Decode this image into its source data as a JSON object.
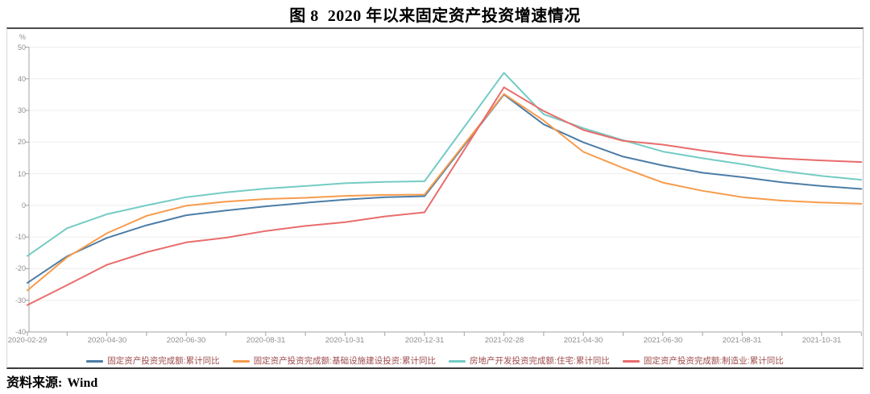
{
  "title": "图 8  2020 年以来固定资产投资增速情况",
  "source": {
    "label": "资料来源:",
    "value": "Wind"
  },
  "chart_data": {
    "type": "line",
    "title": "图 8  2020 年以来固定资产投资增速情况",
    "y_unit": "%",
    "ylim": [
      -40,
      50
    ],
    "ytick_step": 10,
    "y_tick_labels": [
      "50",
      "40",
      "30",
      "20",
      "10",
      "0",
      "-10",
      "-20",
      "-30",
      "-40"
    ],
    "grid": true,
    "legend_position": "bottom",
    "x_tick_labels": [
      "2020-02-29",
      "2020-04-30",
      "2020-06-30",
      "2020-08-31",
      "2020-10-31",
      "2020-12-31",
      "2021-02-28",
      "2021-04-30",
      "2021-06-30",
      "2021-08-31",
      "2021-10-31"
    ],
    "x_months": [
      "2020-02",
      "2020-03",
      "2020-04",
      "2020-05",
      "2020-06",
      "2020-07",
      "2020-08",
      "2020-09",
      "2020-10",
      "2020-11",
      "2020-12",
      "2021-02",
      "2021-03",
      "2021-04",
      "2021-05",
      "2021-06",
      "2021-07",
      "2021-08",
      "2021-09",
      "2021-10",
      "2021-11"
    ],
    "x_month_offsets": [
      0,
      1,
      2,
      3,
      4,
      5,
      6,
      7,
      8,
      9,
      10,
      12,
      13,
      14,
      15,
      16,
      17,
      18,
      19,
      20,
      21
    ],
    "series": [
      {
        "name": "固定资产投资完成额:累计同比",
        "color": "#4c7da6",
        "values": [
          -24.5,
          -16.1,
          -10.3,
          -6.3,
          -3.1,
          -1.6,
          -0.3,
          0.8,
          1.8,
          2.6,
          2.9,
          35.0,
          25.6,
          19.9,
          15.4,
          12.6,
          10.3,
          8.9,
          7.3,
          6.1,
          5.2
        ]
      },
      {
        "name": "固定资产投资完成额:基础设施建设投资:累计同比",
        "color": "#f79c4c",
        "values": [
          -26.9,
          -16.4,
          -8.8,
          -3.3,
          -0.1,
          1.2,
          2.0,
          2.4,
          3.0,
          3.3,
          3.4,
          35.2,
          26.8,
          16.9,
          11.8,
          7.2,
          4.6,
          2.6,
          1.5,
          0.9,
          0.5
        ]
      },
      {
        "name": "房地产开发投资完成额:住宅:累计同比",
        "color": "#74ccc4",
        "values": [
          -16.0,
          -7.2,
          -2.8,
          0.0,
          2.6,
          4.1,
          5.3,
          6.1,
          7.0,
          7.4,
          7.6,
          41.9,
          28.8,
          24.4,
          20.6,
          17.0,
          14.9,
          13.0,
          10.9,
          9.3,
          8.1
        ]
      },
      {
        "name": "固定资产投资完成额:制造业:累计同比",
        "color": "#e96c6c",
        "values": [
          -31.5,
          -25.2,
          -18.8,
          -14.8,
          -11.7,
          -10.2,
          -8.1,
          -6.5,
          -5.3,
          -3.5,
          -2.2,
          37.3,
          29.8,
          23.8,
          20.4,
          19.2,
          17.3,
          15.7,
          14.8,
          14.2,
          13.7
        ]
      }
    ],
    "axis_colors": {
      "axis_line": "#a3a3a3",
      "grid_line": "#ededed",
      "tick_label": "#8f8f8f",
      "legend_text": "#9e4b4b"
    }
  }
}
